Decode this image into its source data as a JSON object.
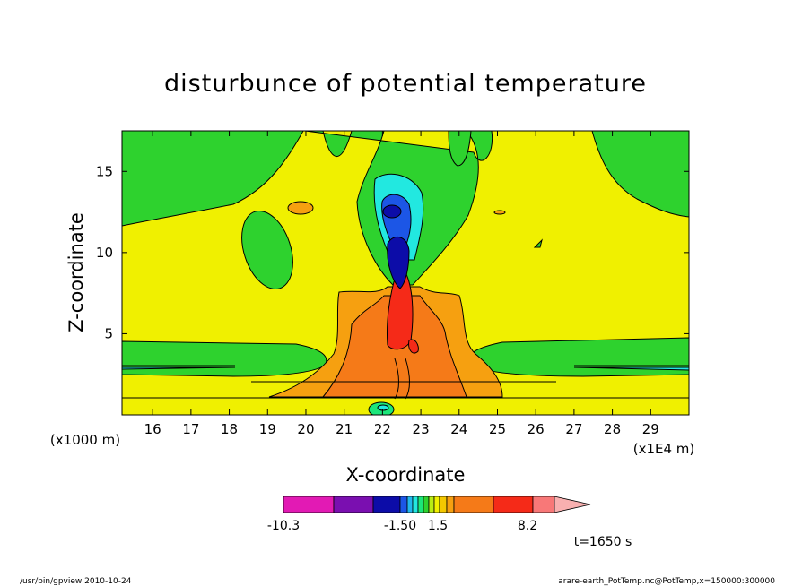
{
  "chart_data": {
    "type": "contour",
    "title": "disturbunce of potential temperature",
    "xlabel": "X-coordinate",
    "ylabel": "Z-coordinate",
    "x_ticks": [
      "16",
      "17",
      "18",
      "19",
      "20",
      "21",
      "22",
      "23",
      "24",
      "25",
      "26",
      "27",
      "28",
      "29"
    ],
    "y_ticks": [
      "5",
      "10",
      "15"
    ],
    "x_units": "(x1E4 m)",
    "y_units": "(x1000 m)",
    "xlim": [
      15.2,
      30.0
    ],
    "ylim": [
      0.0,
      17.5
    ],
    "colorbar": {
      "labels": [
        "-10.3",
        "-1.50",
        "1.5",
        "8.2"
      ],
      "colors": [
        "#e21ab4",
        "#7a0fb0",
        "#0c0ca8",
        "#1c56e6",
        "#22b8ee",
        "#22e8e0",
        "#1ce67a",
        "#2ed22e",
        "#b8ec14",
        "#f0f000",
        "#f4c800",
        "#f6a010",
        "#f57a18",
        "#f52a18",
        "#f87878",
        "#f8b0b0"
      ]
    },
    "time_label": "t=1650 s"
  },
  "footer": {
    "left": "/usr/bin/gpview   2010-10-24",
    "right": "arare-earth_PotTemp.nc@PotTemp,x=150000:300000"
  },
  "colors": {
    "yellow": "#f0f000",
    "green": "#2ed22e",
    "orange_light": "#f6a010",
    "orange": "#f57a18",
    "red": "#f52a18",
    "cyan": "#22e8e0",
    "dark_blue": "#0c0ca8",
    "blue": "#1c56e6"
  }
}
